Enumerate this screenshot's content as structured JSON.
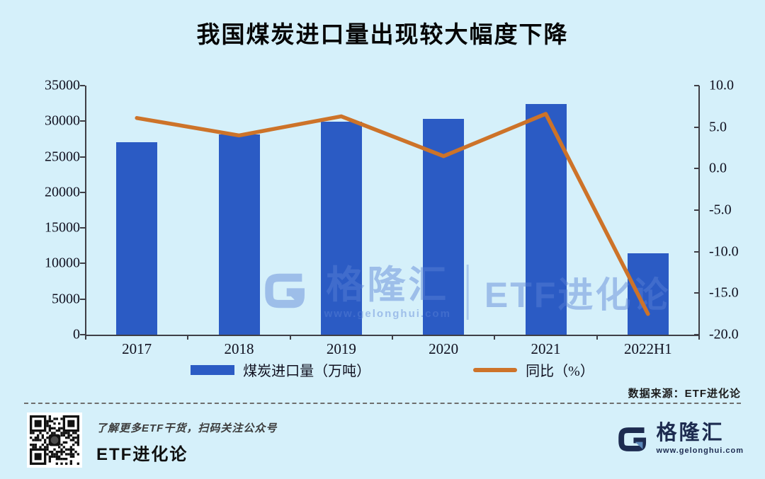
{
  "title": "我国煤炭进口量出现较大幅度下降",
  "chart_data": {
    "type": "bar",
    "subtype": "bar+line combo",
    "categories": [
      "2017",
      "2018",
      "2019",
      "2020",
      "2021",
      "2022H1"
    ],
    "series": [
      {
        "name": "煤炭进口量（万吨）",
        "type": "bar",
        "axis": "left",
        "values": [
          27000,
          28100,
          29900,
          30300,
          32400,
          11400
        ],
        "color": "#2b5bc4"
      },
      {
        "name": "同比（%）",
        "type": "line",
        "axis": "right",
        "values": [
          6.1,
          4.0,
          6.3,
          1.5,
          6.6,
          -17.5
        ],
        "color": "#cd7329"
      }
    ],
    "title": "我国煤炭进口量出现较大幅度下降",
    "xlabel": "",
    "ylabel_left": "",
    "ylabel_right": "",
    "left_axis": {
      "min": 0,
      "max": 35000,
      "ticks": [
        "35000",
        "30000",
        "25000",
        "20000",
        "15000",
        "10000",
        "5000",
        "0"
      ]
    },
    "right_axis": {
      "min": -20,
      "max": 10,
      "ticks": [
        "10.0",
        "5.0",
        "0.0",
        "-5.0",
        "-10.0",
        "-15.0",
        "-20.0"
      ]
    },
    "grid": false,
    "legend_position": "bottom"
  },
  "watermark": {
    "brand": "格隆汇",
    "url": "www.gelonghui.com",
    "partner": "ETF进化论"
  },
  "source_note": "数据来源：ETF进化论",
  "footer": {
    "qr_caption_line1": "了解更多ETF干货，扫码关注公众号",
    "qr_caption_line2": "ETF进化论",
    "logo_text": "格隆汇",
    "logo_url": "www.gelonghui.com"
  },
  "colors": {
    "background": "#d5f0fa",
    "bar": "#2b5bc4",
    "line": "#cd7329",
    "axis": "#3f3f46",
    "watermark": "#5b82d6",
    "navy": "#1d2b50",
    "logo_triangle": "#5b87b8"
  }
}
